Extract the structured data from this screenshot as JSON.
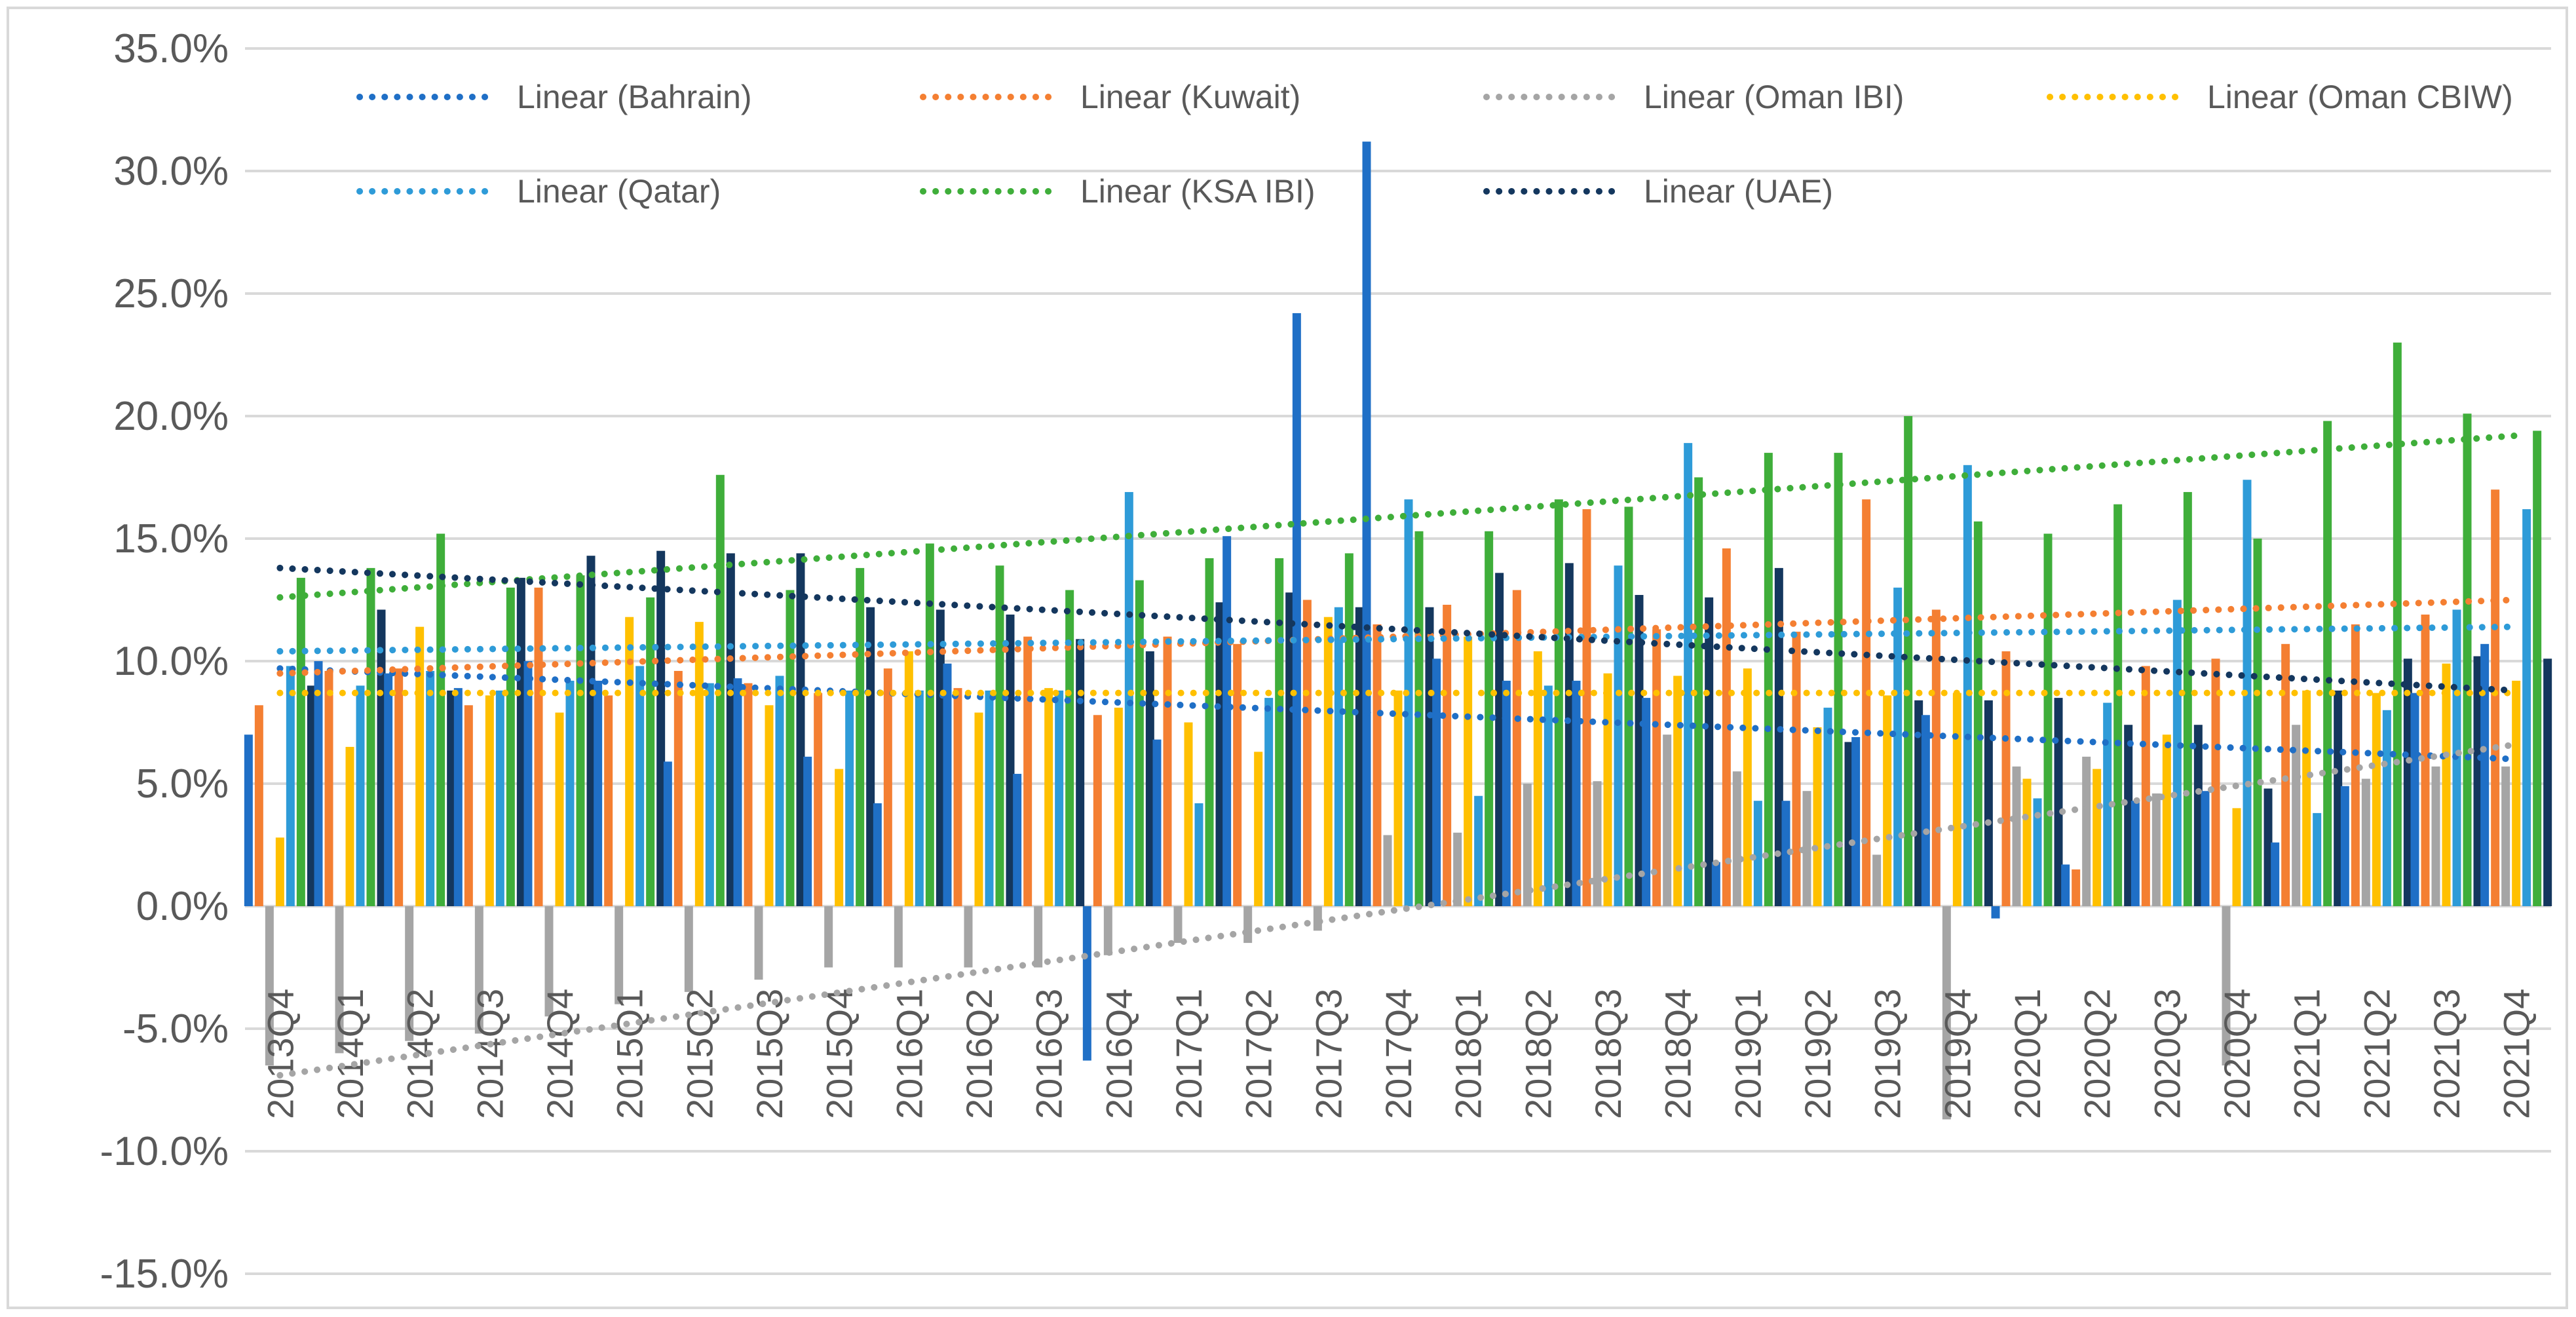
{
  "chart_data": {
    "type": "bar",
    "title": "",
    "xlabel": "",
    "ylabel": "",
    "ylim": [
      -0.15,
      0.35
    ],
    "ytick_values": [
      0.35,
      0.3,
      0.25,
      0.2,
      0.15,
      0.1,
      0.05,
      0.0,
      -0.05,
      -0.1,
      -0.15
    ],
    "ytick_labels": [
      "35.0%",
      "30.0%",
      "25.0%",
      "20.0%",
      "15.0%",
      "10.0%",
      "5.0%",
      "0.0%",
      "-5.0%",
      "-10.0%",
      "-15.0%"
    ],
    "grid": true,
    "legend_position": "top",
    "categories": [
      "2013Q4",
      "2014Q1",
      "2014Q2",
      "2014Q3",
      "2014Q4",
      "2015Q1",
      "2015Q2",
      "2015Q3",
      "2015Q4",
      "2016Q1",
      "2016Q2",
      "2016Q3",
      "2016Q4",
      "2017Q1",
      "2017Q2",
      "2017Q3",
      "2017Q4",
      "2018Q1",
      "2018Q2",
      "2018Q3",
      "2018Q4",
      "2019Q1",
      "2019Q2",
      "2019Q3",
      "2019Q4",
      "2020Q1",
      "2020Q2",
      "2020Q3",
      "2020Q4",
      "2021Q1",
      "2021Q2",
      "2021Q3",
      "2021Q4"
    ],
    "series": [
      {
        "name": "Bahrain",
        "color": "#1F6FC6",
        "values": [
          0.07,
          0.1,
          0.095,
          0.089,
          0.1,
          0.092,
          0.059,
          0.093,
          0.061,
          0.042,
          0.099,
          0.054,
          -0.063,
          0.068,
          0.151,
          0.242,
          0.312,
          0.101,
          0.092,
          0.092,
          0.085,
          0.018,
          0.043,
          0.069,
          0.078,
          -0.005,
          0.017,
          0.043,
          0.047,
          0.026,
          0.049,
          0.087,
          0.107
        ]
      },
      {
        "name": "Kuwait",
        "color": "#F47F32",
        "values": [
          0.082,
          0.096,
          0.097,
          0.082,
          0.13,
          0.086,
          0.096,
          0.091,
          0.087,
          0.097,
          0.089,
          0.11,
          0.078,
          0.11,
          0.107,
          0.125,
          0.115,
          0.123,
          0.129,
          0.162,
          0.113,
          0.146,
          0.112,
          0.166,
          0.121,
          0.104,
          0.015,
          0.098,
          0.101,
          0.107,
          0.115,
          0.119,
          0.17
        ]
      },
      {
        "name": "Oman IBI",
        "color": "#A5A5A5",
        "values": [
          -0.065,
          -0.06,
          -0.055,
          -0.052,
          -0.045,
          -0.04,
          -0.035,
          -0.03,
          -0.025,
          -0.025,
          -0.025,
          -0.025,
          -0.02,
          -0.015,
          -0.015,
          -0.01,
          0.029,
          0.03,
          0.05,
          0.051,
          0.07,
          0.055,
          0.047,
          0.021,
          -0.087,
          0.057,
          0.061,
          0.046,
          -0.065,
          0.074,
          0.052,
          0.057,
          0.057
        ]
      },
      {
        "name": "Oman CBIW",
        "color": "#FFC000",
        "values": [
          0.028,
          0.065,
          0.114,
          0.086,
          0.079,
          0.118,
          0.116,
          0.082,
          0.056,
          0.104,
          0.079,
          0.089,
          0.081,
          0.075,
          0.063,
          0.118,
          0.088,
          0.11,
          0.104,
          0.095,
          0.094,
          0.097,
          0.073,
          0.086,
          0.087,
          0.052,
          0.056,
          0.07,
          0.04,
          0.088,
          0.087,
          0.099,
          0.092
        ]
      },
      {
        "name": "Qatar",
        "color": "#2E9BD8",
        "values": [
          0.098,
          0.09,
          0.096,
          0.088,
          0.092,
          0.098,
          0.091,
          0.094,
          0.088,
          0.088,
          0.088,
          0.088,
          0.169,
          0.042,
          0.085,
          0.122,
          0.166,
          0.045,
          0.09,
          0.139,
          0.189,
          0.043,
          0.081,
          0.13,
          0.18,
          0.044,
          0.083,
          0.125,
          0.174,
          0.038,
          0.08,
          0.121,
          0.162
        ]
      },
      {
        "name": "KSA IBI",
        "color": "#3FAE3A",
        "values": [
          0.134,
          0.138,
          0.152,
          0.13,
          0.135,
          0.126,
          0.176,
          0.129,
          0.138,
          0.148,
          0.139,
          0.129,
          0.133,
          0.142,
          0.142,
          0.144,
          0.153,
          0.153,
          0.166,
          0.163,
          0.175,
          0.185,
          0.185,
          0.2,
          0.157,
          0.152,
          0.164,
          0.169,
          0.15,
          0.198,
          0.23,
          0.201,
          0.194
        ]
      },
      {
        "name": "UAE",
        "color": "#14375E",
        "values": [
          0.09,
          0.121,
          0.088,
          0.134,
          0.143,
          0.145,
          0.144,
          0.144,
          0.122,
          0.121,
          0.119,
          0.109,
          0.104,
          0.124,
          0.128,
          0.122,
          0.122,
          0.136,
          0.14,
          0.127,
          0.126,
          0.138,
          0.067,
          0.084,
          0.084,
          0.085,
          0.074,
          0.074,
          0.048,
          0.088,
          0.101,
          0.102,
          0.101
        ]
      }
    ],
    "trendlines": [
      {
        "name": "Linear (Bahrain)",
        "series": "Bahrain",
        "color": "#1F6FC6",
        "start": 0.097,
        "end": 0.06
      },
      {
        "name": "Linear (Kuwait)",
        "series": "Kuwait",
        "color": "#F47F32",
        "start": 0.095,
        "end": 0.125
      },
      {
        "name": "Linear (Oman IBI)",
        "series": "Oman IBI",
        "color": "#A5A5A5",
        "start": -0.069,
        "end": 0.066
      },
      {
        "name": "Linear (Oman CBIW)",
        "series": "Oman CBIW",
        "color": "#FFC000",
        "start": 0.087,
        "end": 0.087
      },
      {
        "name": "Linear (Qatar)",
        "series": "Qatar",
        "color": "#2E9BD8",
        "start": 0.104,
        "end": 0.114
      },
      {
        "name": "Linear (KSA IBI)",
        "series": "KSA IBI",
        "color": "#3FAE3A",
        "start": 0.126,
        "end": 0.192
      },
      {
        "name": "Linear (UAE)",
        "series": "UAE",
        "color": "#14375E",
        "start": 0.138,
        "end": 0.088
      }
    ],
    "legend": [
      "Linear (Bahrain)",
      "Linear (Kuwait)",
      "Linear (Oman IBI)",
      "Linear (Oman CBIW)",
      "Linear (Qatar)",
      "Linear (KSA IBI)",
      "Linear (UAE)"
    ]
  }
}
